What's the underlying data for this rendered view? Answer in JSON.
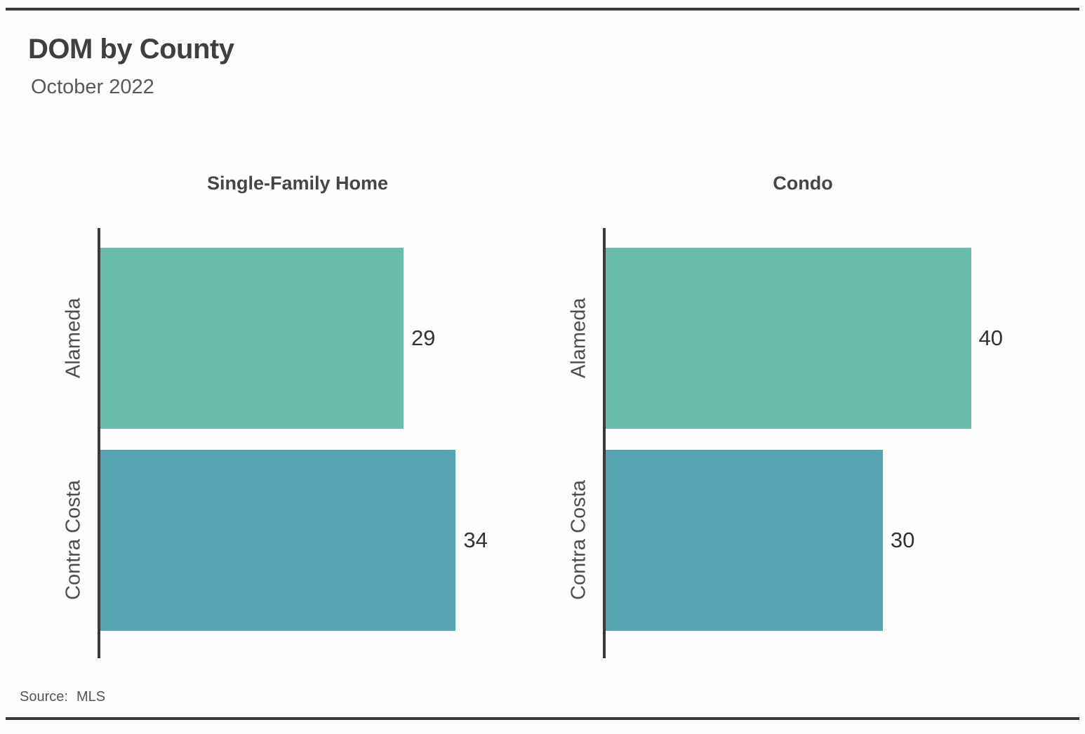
{
  "page": {
    "title": "DOM by County",
    "subtitle": "October 2022",
    "source": {
      "label": "Source:",
      "value": "MLS"
    }
  },
  "colors": {
    "bar_alameda": "#6bbcab",
    "bar_contra_costa": "#57a4b2",
    "axis_line": "#3a3a3a",
    "rule_line": "#3a3a3a",
    "title_text": "#3f3f3f",
    "subtitle_text": "#595959",
    "category_text": "#4d4d4d",
    "value_text": "#333333",
    "source_text": "#555555"
  },
  "chart_data": [
    {
      "type": "bar",
      "orientation": "horizontal",
      "title": "Single-Family Home",
      "categories": [
        "Alameda",
        "Contra Costa"
      ],
      "values": [
        29,
        34
      ],
      "value_labels": [
        "29",
        "34"
      ],
      "bar_colors": [
        "#6bbcab",
        "#57a4b2"
      ],
      "xlabel": "",
      "ylabel": "",
      "xlim": [
        0,
        38
      ],
      "grid": false,
      "legend": "none"
    },
    {
      "type": "bar",
      "orientation": "horizontal",
      "title": "Condo",
      "categories": [
        "Alameda",
        "Contra Costa"
      ],
      "values": [
        40,
        30
      ],
      "value_labels": [
        "40",
        "30"
      ],
      "bar_colors": [
        "#6bbcab",
        "#57a4b2"
      ],
      "xlabel": "",
      "ylabel": "",
      "xlim": [
        0,
        43
      ],
      "grid": false,
      "legend": "none"
    }
  ]
}
